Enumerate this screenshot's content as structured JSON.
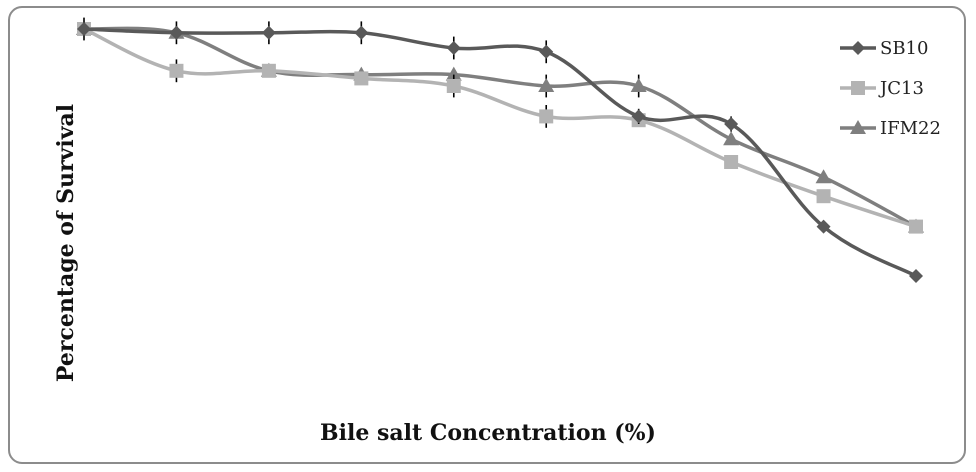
{
  "chart_data": {
    "type": "line",
    "title": "",
    "xlabel": "Bile salt Concentration (%)",
    "ylabel": "Percentage of Survival",
    "x": [
      1,
      2,
      3,
      4,
      5,
      6,
      7,
      8,
      9,
      10
    ],
    "ylim": [
      0,
      100
    ],
    "grid": false,
    "legend_position": "top-right",
    "series": [
      {
        "name": "SB10",
        "marker": "diamond",
        "color": "#595959",
        "values": [
          95,
          94,
          94,
          94,
          90,
          89,
          72,
          70,
          43,
          30
        ],
        "error": [
          3,
          3,
          3,
          3,
          3,
          3,
          2,
          2,
          0,
          0
        ]
      },
      {
        "name": "JC13",
        "marker": "square",
        "color": "#b3b3b3",
        "values": [
          95,
          84,
          84,
          82,
          80,
          72,
          71,
          60,
          51,
          43
        ],
        "error": [
          0,
          3,
          0,
          0,
          3,
          3,
          0,
          0,
          0,
          0
        ]
      },
      {
        "name": "IFM22",
        "marker": "triangle",
        "color": "#7f7f7f",
        "values": [
          95,
          94,
          84,
          83,
          83,
          80,
          80,
          66,
          56,
          43
        ],
        "error": [
          0,
          0,
          0,
          0,
          0,
          3,
          3,
          0,
          0,
          0
        ]
      }
    ]
  }
}
